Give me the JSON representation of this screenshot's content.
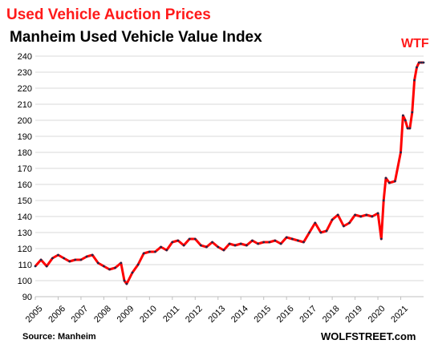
{
  "header": {
    "title": "Used Vehicle Auction Prices",
    "subtitle": "Manheim Used Vehicle Value Index"
  },
  "annotation": "WTF",
  "footer": {
    "source": "Source: Manheim",
    "credit": "WOLFSTREET.com"
  },
  "colors": {
    "line": "#ff0000",
    "markers": "#1f2a4d",
    "grid": "#d9d9d9",
    "title": "#ff1a1a"
  },
  "chart_data": {
    "type": "line",
    "title": "Manheim Used Vehicle Value Index",
    "xlabel": "",
    "ylabel": "",
    "ylim": [
      90,
      240
    ],
    "xlim": [
      "2005-01",
      "2022-01"
    ],
    "yticks": [
      90,
      100,
      110,
      120,
      130,
      140,
      150,
      160,
      170,
      180,
      190,
      200,
      210,
      220,
      230,
      240
    ],
    "xtick_labels": [
      "2005",
      "2006",
      "2007",
      "2008",
      "2009",
      "2010",
      "2011",
      "2012",
      "2013",
      "2014",
      "2015",
      "2016",
      "2017",
      "2018",
      "2019",
      "2020",
      "2021"
    ],
    "grid": "horizontal",
    "series": [
      {
        "x": [
          2005.0,
          2005.25,
          2005.5,
          2005.75,
          2006.0,
          2006.25,
          2006.5,
          2006.75,
          2007.0,
          2007.25,
          2007.5,
          2007.75,
          2008.0,
          2008.25,
          2008.5,
          2008.75,
          2008.9,
          2009.0,
          2009.25,
          2009.5,
          2009.75,
          2010.0,
          2010.25,
          2010.5,
          2010.75,
          2011.0,
          2011.25,
          2011.5,
          2011.75,
          2012.0,
          2012.25,
          2012.5,
          2012.75,
          2013.0,
          2013.25,
          2013.5,
          2013.75,
          2014.0,
          2014.25,
          2014.5,
          2014.75,
          2015.0,
          2015.25,
          2015.5,
          2015.75,
          2016.0,
          2016.25,
          2016.5,
          2016.75,
          2017.0,
          2017.25,
          2017.5,
          2017.75,
          2018.0,
          2018.25,
          2018.5,
          2018.75,
          2019.0,
          2019.25,
          2019.5,
          2019.75,
          2020.0,
          2020.15,
          2020.25,
          2020.35,
          2020.5,
          2020.75,
          2021.0,
          2021.1,
          2021.2,
          2021.3,
          2021.4,
          2021.5,
          2021.6,
          2021.7,
          2021.8,
          2021.9,
          2022.0
        ],
        "values": [
          109,
          113,
          109,
          114,
          116,
          114,
          112,
          113,
          113,
          115,
          116,
          111,
          109,
          107,
          108,
          111,
          100,
          98,
          105,
          110,
          117,
          118,
          118,
          121,
          119,
          124,
          125,
          122,
          126,
          126,
          122,
          121,
          124,
          121,
          119,
          123,
          122,
          123,
          122,
          125,
          123,
          124,
          124,
          125,
          123,
          127,
          126,
          125,
          124,
          130,
          136,
          130,
          131,
          138,
          141,
          134,
          136,
          141,
          140,
          141,
          140,
          142,
          126,
          150,
          164,
          161,
          162,
          180,
          203,
          200,
          195,
          195,
          205,
          225,
          233,
          236,
          236,
          236
        ]
      }
    ]
  }
}
